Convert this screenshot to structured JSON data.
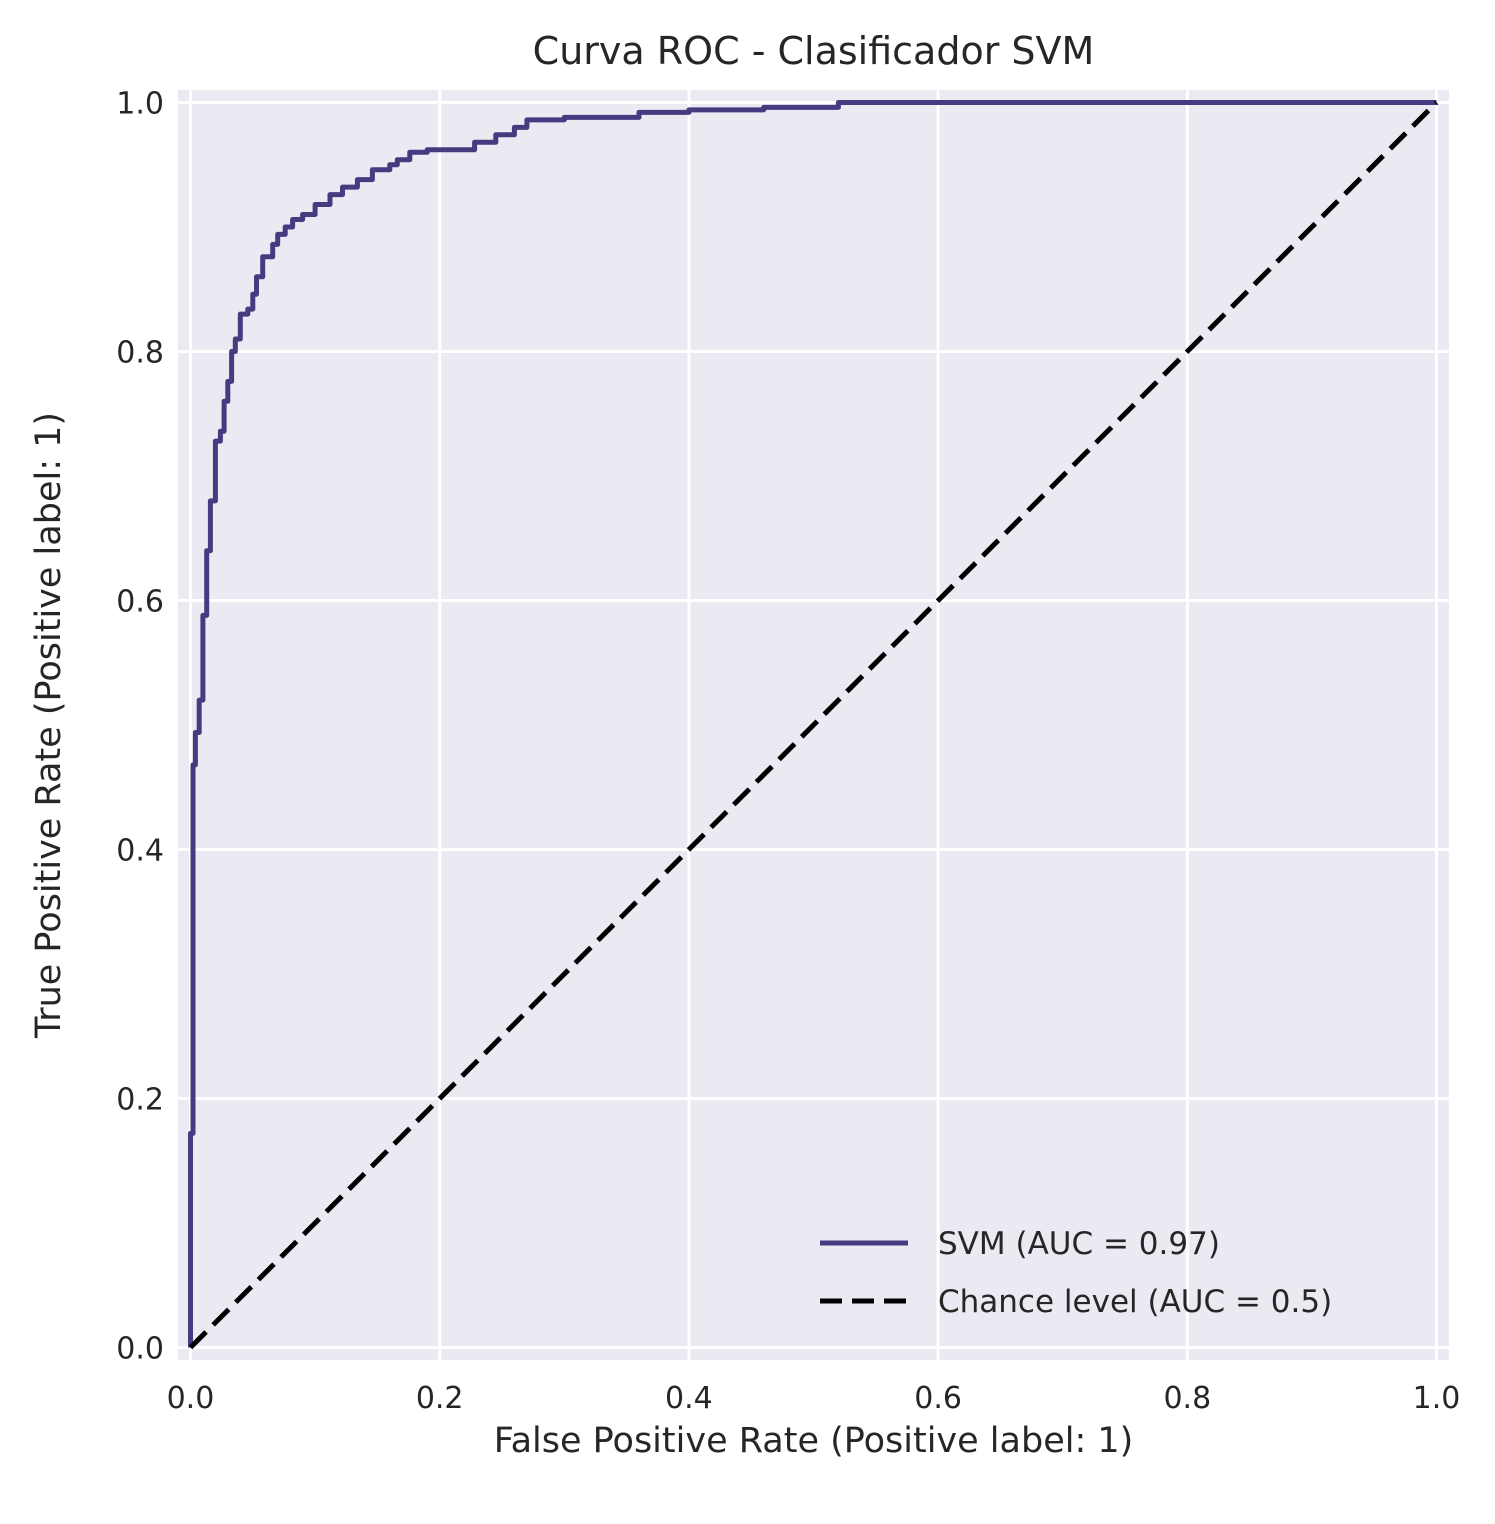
{
  "chart_data": {
    "type": "line",
    "title": "Curva ROC - Clasificador SVM",
    "xlabel": "False Positive Rate (Positive label: 1)",
    "ylabel": "True Positive Rate (Positive label: 1)",
    "xlim": [
      -0.01,
      1.01
    ],
    "ylim": [
      -0.01,
      1.01
    ],
    "xticks": [
      0.0,
      0.2,
      0.4,
      0.6,
      0.8,
      1.0
    ],
    "yticks": [
      0.0,
      0.2,
      0.4,
      0.6,
      0.8,
      1.0
    ],
    "xtick_labels": [
      "0.0",
      "0.2",
      "0.4",
      "0.6",
      "0.8",
      "1.0"
    ],
    "ytick_labels": [
      "0.0",
      "0.2",
      "0.4",
      "0.6",
      "0.8",
      "1.0"
    ],
    "grid": true,
    "legend_position": "lower-right",
    "background_color": "#eaeaf2",
    "series": [
      {
        "name": "SVM (AUC = 0.97)",
        "style": "solid",
        "color": "#483a80",
        "x": [
          0.0,
          0.0,
          0.002,
          0.002,
          0.004,
          0.004,
          0.007,
          0.007,
          0.01,
          0.01,
          0.013,
          0.013,
          0.016,
          0.016,
          0.02,
          0.02,
          0.024,
          0.024,
          0.027,
          0.027,
          0.03,
          0.03,
          0.033,
          0.033,
          0.036,
          0.036,
          0.04,
          0.04,
          0.046,
          0.046,
          0.05,
          0.05,
          0.053,
          0.053,
          0.058,
          0.058,
          0.066,
          0.066,
          0.07,
          0.07,
          0.076,
          0.076,
          0.082,
          0.082,
          0.09,
          0.09,
          0.1,
          0.1,
          0.112,
          0.112,
          0.122,
          0.122,
          0.134,
          0.134,
          0.146,
          0.146,
          0.16,
          0.16,
          0.166,
          0.166,
          0.176,
          0.176,
          0.19,
          0.19,
          0.228,
          0.228,
          0.245,
          0.245,
          0.26,
          0.26,
          0.27,
          0.27,
          0.3,
          0.3,
          0.36,
          0.36,
          0.4,
          0.4,
          0.46,
          0.46,
          0.52,
          0.52,
          1.0
        ],
        "y": [
          0.0,
          0.172,
          0.172,
          0.468,
          0.468,
          0.494,
          0.494,
          0.52,
          0.52,
          0.588,
          0.588,
          0.64,
          0.64,
          0.68,
          0.68,
          0.728,
          0.728,
          0.736,
          0.736,
          0.76,
          0.76,
          0.776,
          0.776,
          0.8,
          0.8,
          0.81,
          0.81,
          0.83,
          0.83,
          0.834,
          0.834,
          0.846,
          0.846,
          0.86,
          0.86,
          0.876,
          0.876,
          0.886,
          0.886,
          0.894,
          0.894,
          0.9,
          0.9,
          0.906,
          0.906,
          0.91,
          0.91,
          0.918,
          0.918,
          0.926,
          0.926,
          0.932,
          0.932,
          0.938,
          0.938,
          0.946,
          0.946,
          0.95,
          0.95,
          0.954,
          0.954,
          0.96,
          0.96,
          0.962,
          0.962,
          0.968,
          0.968,
          0.974,
          0.974,
          0.98,
          0.98,
          0.986,
          0.986,
          0.988,
          0.988,
          0.992,
          0.992,
          0.994,
          0.994,
          0.996,
          0.996,
          1.0,
          1.0
        ]
      },
      {
        "name": "Chance level (AUC = 0.5)",
        "style": "dashed",
        "color": "#000000",
        "x": [
          0.0,
          1.0
        ],
        "y": [
          0.0,
          1.0
        ]
      }
    ]
  }
}
